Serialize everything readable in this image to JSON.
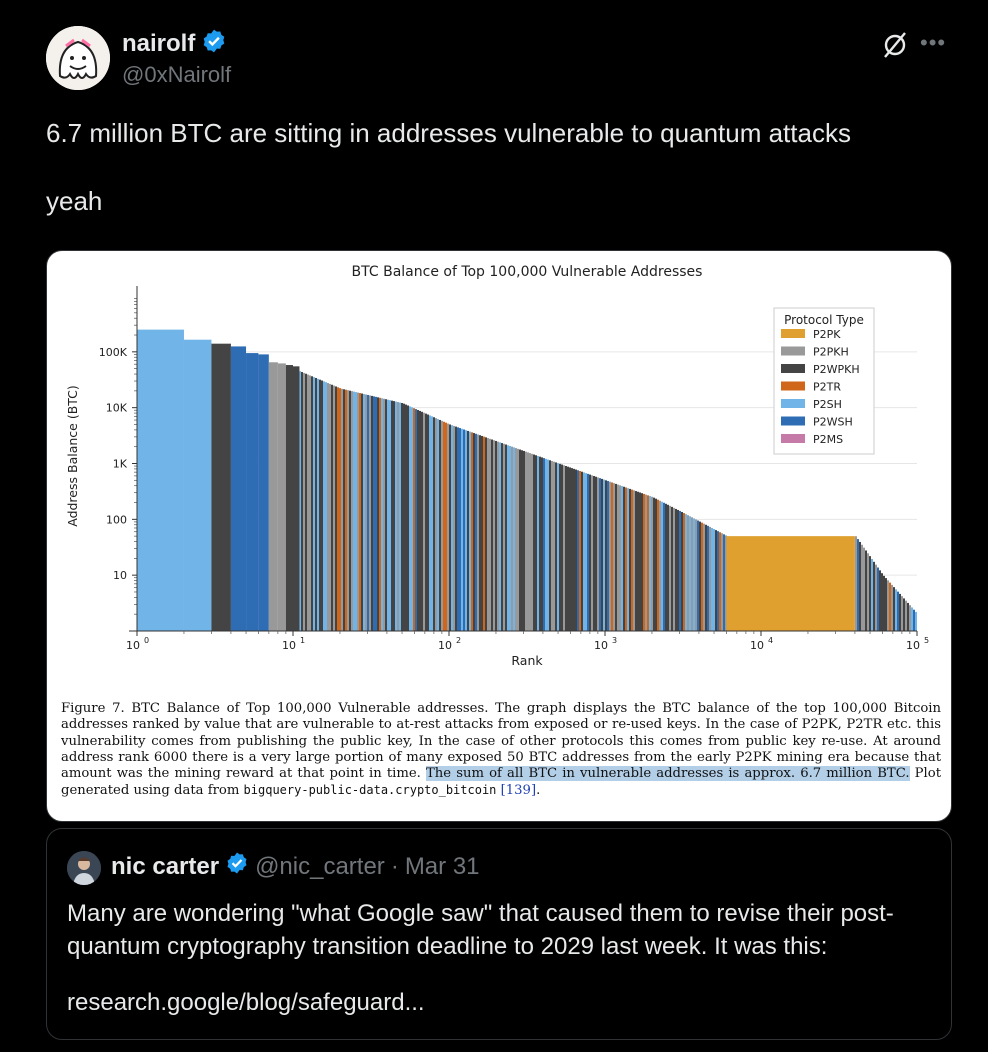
{
  "author": {
    "name": "nairolf",
    "handle": "@0xNairolf",
    "verified": true
  },
  "tweet": {
    "text": "6.7 million BTC are sitting in addresses vulnerable to quantum attacks\n\nyeah"
  },
  "icons": {
    "verified": "verified-badge-icon",
    "grok": "grok-icon",
    "more": "more-icon"
  },
  "colors": {
    "background": "#000000",
    "verified": "#1d9bf0",
    "P2PK": "#e0a030",
    "P2PKH": "#999999",
    "P2WPKH": "#444444",
    "P2TR": "#d0661a",
    "P2SH": "#70b4e8",
    "P2WSH": "#2e6db4",
    "P2MS": "#c67aa8"
  },
  "chart_data": {
    "type": "bar",
    "title": "BTC Balance of Top 100,000 Vulnerable Addresses",
    "xlabel": "Rank",
    "ylabel": "Address Balance (BTC)",
    "xscale": "log",
    "yscale": "log",
    "xlim": [
      1,
      100000
    ],
    "ylim": [
      1,
      1000000
    ],
    "x_ticks": [
      "10",
      "10",
      "10",
      "10",
      "10",
      "10"
    ],
    "x_tick_exponents": [
      "0",
      "1",
      "2",
      "3",
      "4",
      "5"
    ],
    "y_ticks": [
      "100K",
      "10K",
      "1K",
      "100",
      "10"
    ],
    "grid": "horizontal",
    "legend": {
      "title": "Protocol Type",
      "placement": "top-right",
      "entries": [
        "P2PK",
        "P2PKH",
        "P2WPKH",
        "P2TR",
        "P2SH",
        "P2WSH",
        "P2MS"
      ]
    },
    "series": [
      {
        "name": "P2SH",
        "x": [
          1,
          2
        ],
        "y": [
          250000,
          165000
        ]
      },
      {
        "name": "P2WPKH",
        "x": [
          3
        ],
        "y": [
          140000
        ]
      },
      {
        "name": "P2WSH",
        "x": [
          4,
          5,
          6
        ],
        "y": [
          125000,
          95000,
          90000
        ]
      },
      {
        "name": "P2PKH",
        "x": [
          7,
          8
        ],
        "y": [
          65000,
          62000
        ]
      },
      {
        "name": "P2WPKH",
        "x": [
          9,
          10
        ],
        "y": [
          58000,
          55000
        ]
      },
      {
        "name": "P2PK",
        "x": [
          6000,
          40000
        ],
        "y": [
          50,
          50
        ]
      }
    ],
    "balance_curve": [
      {
        "rank": 10,
        "btc": 50000
      },
      {
        "rank": 20,
        "btc": 22000
      },
      {
        "rank": 50,
        "btc": 12000
      },
      {
        "rank": 100,
        "btc": 5000
      },
      {
        "rank": 200,
        "btc": 2500
      },
      {
        "rank": 500,
        "btc": 1000
      },
      {
        "rank": 1000,
        "btc": 500
      },
      {
        "rank": 2000,
        "btc": 250
      },
      {
        "rank": 3000,
        "btc": 140
      },
      {
        "rank": 6000,
        "btc": 50
      },
      {
        "rank": 40000,
        "btc": 50
      },
      {
        "rank": 60000,
        "btc": 10
      },
      {
        "rank": 100000,
        "btc": 2
      }
    ]
  },
  "caption": {
    "part1": "Figure 7. BTC Balance of Top 100,000 Vulnerable addresses. The graph displays the BTC balance of the top 100,000 Bitcoin addresses ranked by value that are vulnerable to at-rest attacks from exposed or re-used keys. In the case of P2PK, P2TR etc. this vulnerability comes from publishing the public key, In the case of other protocols this comes from public key re-use. At around address rank 6000 there is a very large portion of many exposed 50 BTC addresses from the early P2PK mining era because that amount was the mining reward at that point in time. ",
    "highlight": "The sum of all BTC in vulnerable addresses is approx. 6.7 million BTC.",
    "part2": " Plot generated using data from ",
    "dataset": "bigquery-public-data.crypto_bitcoin",
    "space": " ",
    "ref": "[139]",
    "end": "."
  },
  "quote": {
    "name": "nic carter",
    "handle": "@nic_carter",
    "separator": "·",
    "date": "Mar 31",
    "text": "Many are wondering \"what Google saw\" that caused them to revise their post-quantum cryptography transition deadline to 2029 last week. It was this:",
    "link": "research.google/blog/safeguard..."
  }
}
